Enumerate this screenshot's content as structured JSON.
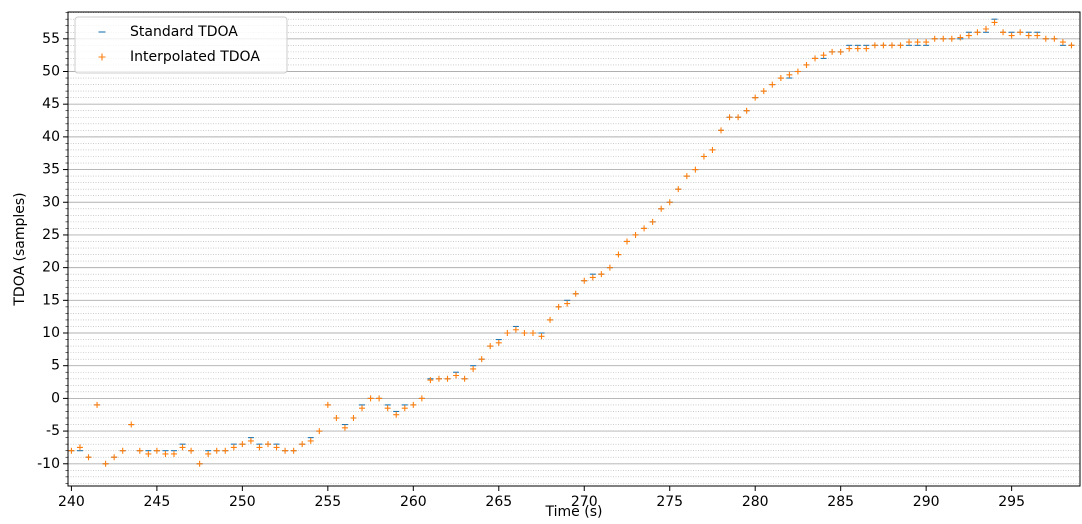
{
  "chart_data": {
    "type": "scatter",
    "xlabel": "Time (s)",
    "ylabel": "TDOA (samples)",
    "x": [
      240,
      240.5,
      241,
      241.5,
      242,
      242.5,
      243,
      243.5,
      244,
      244.5,
      245,
      245.5,
      246,
      246.5,
      247,
      247.5,
      248,
      248.5,
      249,
      249.5,
      250,
      250.5,
      251,
      251.5,
      252,
      252.5,
      253,
      253.5,
      254,
      254.5,
      255,
      255.5,
      256,
      256.5,
      257,
      257.5,
      258,
      258.5,
      259,
      259.5,
      260,
      260.5,
      261,
      261.5,
      262,
      262.5,
      263,
      263.5,
      264,
      264.5,
      265,
      265.5,
      266,
      266.5,
      267,
      267.5,
      268,
      268.5,
      269,
      269.5,
      270,
      270.5,
      271,
      271.5,
      272,
      272.5,
      273,
      273.5,
      274,
      274.5,
      275,
      275.5,
      276,
      276.5,
      277,
      277.5,
      278,
      278.5,
      279,
      279.5,
      280,
      280.5,
      281,
      281.5,
      282,
      282.5,
      283,
      283.5,
      284,
      284.5,
      285,
      285.5,
      286,
      286.5,
      287,
      287.5,
      288,
      288.5,
      289,
      289.5,
      290,
      290.5,
      291,
      291.5,
      292,
      292.5,
      293,
      293.5,
      294,
      294.5,
      295,
      295.5,
      296,
      296.5,
      297,
      297.5,
      298,
      298.5
    ],
    "series": [
      {
        "name": "Standard TDOA",
        "color": "#1f77b4",
        "marker": "_",
        "values": [
          -8,
          -8,
          -9,
          -1,
          -10,
          -9,
          -8,
          -4,
          -8,
          -8,
          -8,
          -8,
          -8,
          -7,
          -8,
          -10,
          -8,
          -8,
          -8,
          -7,
          -7,
          -6,
          -7,
          -7,
          -7,
          -8,
          -8,
          -7,
          -6,
          -5,
          -1,
          -3,
          -4,
          -3,
          -1,
          0,
          0,
          -1,
          -2,
          -1,
          -1,
          0,
          3,
          3,
          3,
          4,
          3,
          5,
          6,
          8,
          9,
          10,
          11,
          10,
          10,
          10,
          12,
          14,
          15,
          16,
          18,
          19,
          19,
          20,
          22,
          24,
          25,
          26,
          27,
          29,
          30,
          32,
          34,
          35,
          37,
          38,
          41,
          43,
          43,
          44,
          46,
          47,
          48,
          49,
          49,
          50,
          51,
          52,
          52,
          53,
          53,
          54,
          54,
          54,
          54,
          54,
          54,
          54,
          54,
          54,
          54,
          55,
          55,
          55,
          55,
          56,
          56,
          56,
          58,
          56,
          56,
          56,
          56,
          56,
          55,
          55,
          54,
          54
        ]
      },
      {
        "name": "Interpolated TDOA",
        "color": "#ff7f0e",
        "marker": "+",
        "values": [
          -8,
          -7.5,
          -9,
          -1,
          -10,
          -9,
          -8,
          -4,
          -8,
          -8.5,
          -8,
          -8.5,
          -8.5,
          -7.5,
          -8,
          -10,
          -8.5,
          -8,
          -8,
          -7.5,
          -7,
          -6.5,
          -7.5,
          -7,
          -7.5,
          -8,
          -8,
          -7,
          -6.5,
          -5,
          -1,
          -3,
          -4.5,
          -3,
          -1.5,
          0,
          0,
          -1.5,
          -2.5,
          -1.5,
          -1,
          0,
          2.8,
          3,
          3,
          3.5,
          3,
          4.5,
          6,
          8,
          8.5,
          10,
          10.5,
          10,
          10,
          9.5,
          12,
          14,
          14.5,
          16,
          18,
          18.5,
          19,
          20,
          22,
          24,
          25,
          26,
          27,
          29,
          30,
          32,
          34,
          35,
          37,
          38,
          41,
          43,
          43,
          44,
          46,
          47,
          48,
          49,
          49.5,
          50,
          51,
          52,
          52.5,
          53,
          53,
          53.5,
          53.5,
          53.5,
          54,
          54,
          54,
          54,
          54.5,
          54.5,
          54.5,
          55,
          55,
          55,
          55.2,
          55.5,
          56,
          56.5,
          57.5,
          56,
          55.5,
          56,
          55.5,
          55.5,
          55,
          55,
          54.5,
          54
        ]
      }
    ],
    "xlim": [
      239.8,
      299
    ],
    "ylim": [
      -13.4,
      59.1
    ],
    "xticks": [
      240,
      245,
      250,
      255,
      260,
      265,
      270,
      275,
      280,
      285,
      290,
      295
    ],
    "yticks": [
      -10,
      -5,
      0,
      5,
      10,
      15,
      20,
      25,
      30,
      35,
      40,
      45,
      50,
      55
    ],
    "yminorticks": [
      -13,
      -12,
      -11,
      -10,
      -9,
      -8,
      -7,
      -6,
      -5,
      -4,
      -3,
      -2,
      -1,
      0,
      1,
      2,
      3,
      4,
      5,
      6,
      7,
      8,
      9,
      10,
      11,
      12,
      13,
      14,
      15,
      16,
      17,
      18,
      19,
      20,
      21,
      22,
      23,
      24,
      25,
      26,
      27,
      28,
      29,
      30,
      31,
      32,
      33,
      34,
      35,
      36,
      37,
      38,
      39,
      40,
      41,
      42,
      43,
      44,
      45,
      46,
      47,
      48,
      49,
      50,
      51,
      52,
      53,
      54,
      55,
      56,
      57,
      58,
      59
    ],
    "grid": true,
    "legend": "upper left"
  }
}
